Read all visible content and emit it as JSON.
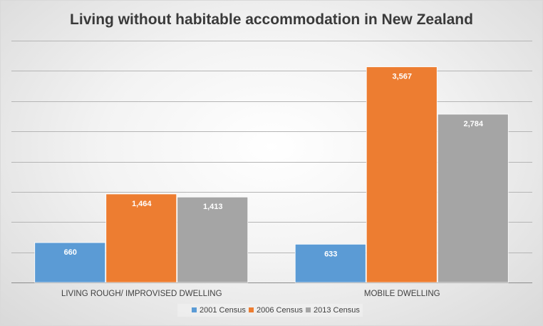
{
  "chart_data": {
    "type": "bar",
    "title": "Living without habitable accommodation in New Zealand",
    "categories": [
      "LIVING ROUGH/ IMPROVISED DWELLING",
      "MOBILE DWELLING"
    ],
    "series": [
      {
        "name": "2001 Census",
        "values": [
          660,
          633
        ],
        "labels": [
          "660",
          "633"
        ],
        "color": "#5b9bd5"
      },
      {
        "name": "2006 Census",
        "values": [
          1464,
          3567
        ],
        "labels": [
          "1,464",
          "3,567"
        ],
        "color": "#ed7d31"
      },
      {
        "name": "2013 Census",
        "values": [
          1413,
          2784
        ],
        "labels": [
          "1,413",
          "2,784"
        ],
        "color": "#a5a5a5"
      }
    ],
    "ylim": [
      0,
      4000
    ],
    "gridlines": true,
    "legend_position": "bottom",
    "xlabel": "",
    "ylabel": ""
  }
}
